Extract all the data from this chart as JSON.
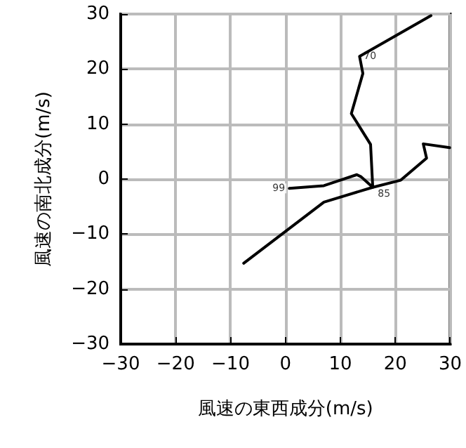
{
  "chart_data": {
    "type": "line",
    "xlabel": "風速の東西成分(m/s)",
    "ylabel": "風速の南北成分(m/s)",
    "xlim": [
      -30,
      30
    ],
    "ylim": [
      -30,
      30
    ],
    "xticks": [
      {
        "value": -30,
        "label": "−30"
      },
      {
        "value": -20,
        "label": "−20"
      },
      {
        "value": -10,
        "label": "−10"
      },
      0,
      10,
      20,
      30
    ],
    "yticks": [
      {
        "value": -30,
        "label": "−30"
      },
      {
        "value": -20,
        "label": "−20"
      },
      {
        "value": -10,
        "label": "−10"
      },
      0,
      10,
      20,
      30
    ],
    "grid": true,
    "marker": "none",
    "line_style": "solid",
    "series": [
      {
        "color": "#000000",
        "x": [
          0.7,
          7.0,
          13.0,
          13.8,
          15.9,
          15.5,
          12.0,
          14.1,
          13.5,
          26.5
        ],
        "values": [
          -1.7,
          -1.2,
          0.8,
          0.4,
          -1.5,
          6.3,
          11.9,
          19.2,
          22.3,
          29.7
        ]
      },
      {
        "color": "#000000",
        "x": [
          -7.6,
          7.0,
          15.9,
          21.0,
          25.7,
          25.1,
          29.9
        ],
        "values": [
          -15.3,
          -4.2,
          -1.5,
          -0.2,
          3.8,
          6.4,
          5.7
        ]
      }
    ],
    "annotations": [
      {
        "text": "99",
        "x": 0.7,
        "y": -1.7
      },
      {
        "text": "85",
        "x": 15.9,
        "y": -1.5
      },
      {
        "text": "70",
        "x": 13.5,
        "y": 22.3
      }
    ]
  }
}
